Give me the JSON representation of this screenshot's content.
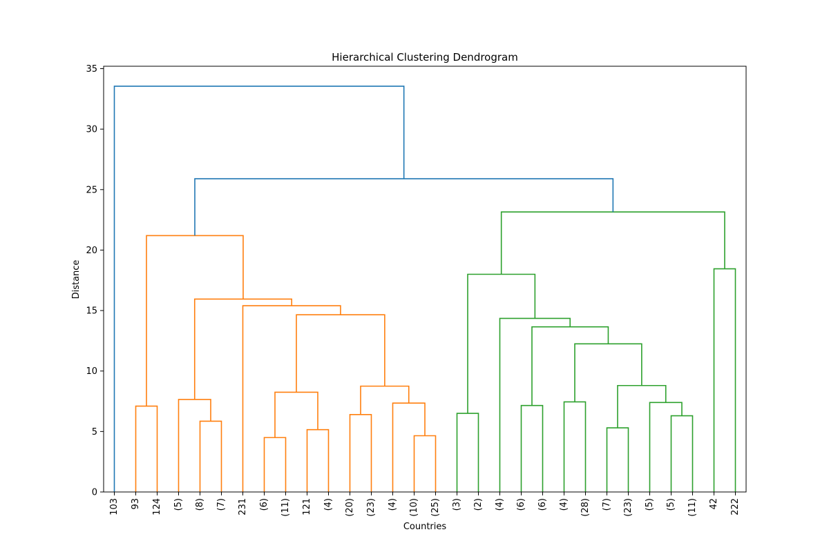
{
  "chart_data": {
    "type": "dendrogram",
    "title": "Hierarchical Clustering Dendrogram",
    "xlabel": "Countries",
    "ylabel": "Distance",
    "ylim": [
      0,
      35.2
    ],
    "yticks": [
      0,
      5,
      10,
      15,
      20,
      25,
      30,
      35
    ],
    "grid": false,
    "colors": {
      "root": "#1f77b4",
      "cluster1": "#ff7f0e",
      "cluster2": "#2ca02c"
    },
    "leaves": [
      "103",
      "93",
      "124",
      "(5)",
      "(8)",
      "(7)",
      "231",
      "(6)",
      "(11)",
      "121",
      "(4)",
      "(20)",
      "(23)",
      "(4)",
      "(10)",
      "(25)",
      "(3)",
      "(2)",
      "(4)",
      "(6)",
      "(6)",
      "(4)",
      "(28)",
      "(7)",
      "(23)",
      "(5)",
      "(5)",
      "(11)",
      "42",
      "222"
    ],
    "merges": [
      {
        "a": 1,
        "b": 2,
        "h": 7.1,
        "color": "cluster1"
      },
      {
        "a": 4,
        "b": 5,
        "h": 5.85,
        "color": "cluster1"
      },
      {
        "a": 3,
        "b": 4.5,
        "h": 7.65,
        "color": "cluster1"
      },
      {
        "a": 7,
        "b": 8,
        "h": 4.5,
        "color": "cluster1"
      },
      {
        "a": 9,
        "b": 10,
        "h": 5.15,
        "color": "cluster1"
      },
      {
        "a": 7.5,
        "b": 9.5,
        "h": 8.25,
        "color": "cluster1"
      },
      {
        "a": 11,
        "b": 12,
        "h": 6.4,
        "color": "cluster1"
      },
      {
        "a": 14,
        "b": 15,
        "h": 4.65,
        "color": "cluster1"
      },
      {
        "a": 13,
        "b": 14.5,
        "h": 7.35,
        "color": "cluster1"
      },
      {
        "a": 11.5,
        "b": 13.75,
        "h": 8.75,
        "color": "cluster1"
      },
      {
        "a": 8.5,
        "b": 12.625,
        "h": 14.65,
        "color": "cluster1"
      },
      {
        "a": 6,
        "b": 10.5625,
        "h": 15.4,
        "color": "cluster1"
      },
      {
        "a": 3.75,
        "b": 8.28125,
        "h": 15.95,
        "color": "cluster1"
      },
      {
        "a": 1.5,
        "b": 6.015625,
        "h": 21.2,
        "color": "cluster1"
      },
      {
        "a": 16,
        "b": 17,
        "h": 6.5,
        "color": "cluster2"
      },
      {
        "a": 19,
        "b": 20,
        "h": 7.15,
        "color": "cluster2"
      },
      {
        "a": 21,
        "b": 22,
        "h": 7.45,
        "color": "cluster2"
      },
      {
        "a": 23,
        "b": 24,
        "h": 5.3,
        "color": "cluster2"
      },
      {
        "a": 26,
        "b": 27,
        "h": 6.3,
        "color": "cluster2"
      },
      {
        "a": 25,
        "b": 26.5,
        "h": 7.4,
        "color": "cluster2"
      },
      {
        "a": 23.5,
        "b": 25.75,
        "h": 8.8,
        "color": "cluster2"
      },
      {
        "a": 21.5,
        "b": 24.625,
        "h": 12.25,
        "color": "cluster2"
      },
      {
        "a": 19.5,
        "b": 23.0625,
        "h": 13.65,
        "color": "cluster2"
      },
      {
        "a": 18,
        "b": 21.28125,
        "h": 14.35,
        "color": "cluster2"
      },
      {
        "a": 16.5,
        "b": 19.640625,
        "h": 18.0,
        "color": "cluster2"
      },
      {
        "a": 28,
        "b": 29,
        "h": 18.45,
        "color": "cluster2"
      },
      {
        "a": 18.0703125,
        "b": 28.5,
        "h": 23.15,
        "color": "cluster2"
      },
      {
        "a": 3.7578125,
        "b": 23.28515625,
        "h": 25.9,
        "color": "root"
      },
      {
        "a": 0,
        "b": 13.521484375,
        "h": 33.55,
        "color": "root"
      }
    ]
  }
}
